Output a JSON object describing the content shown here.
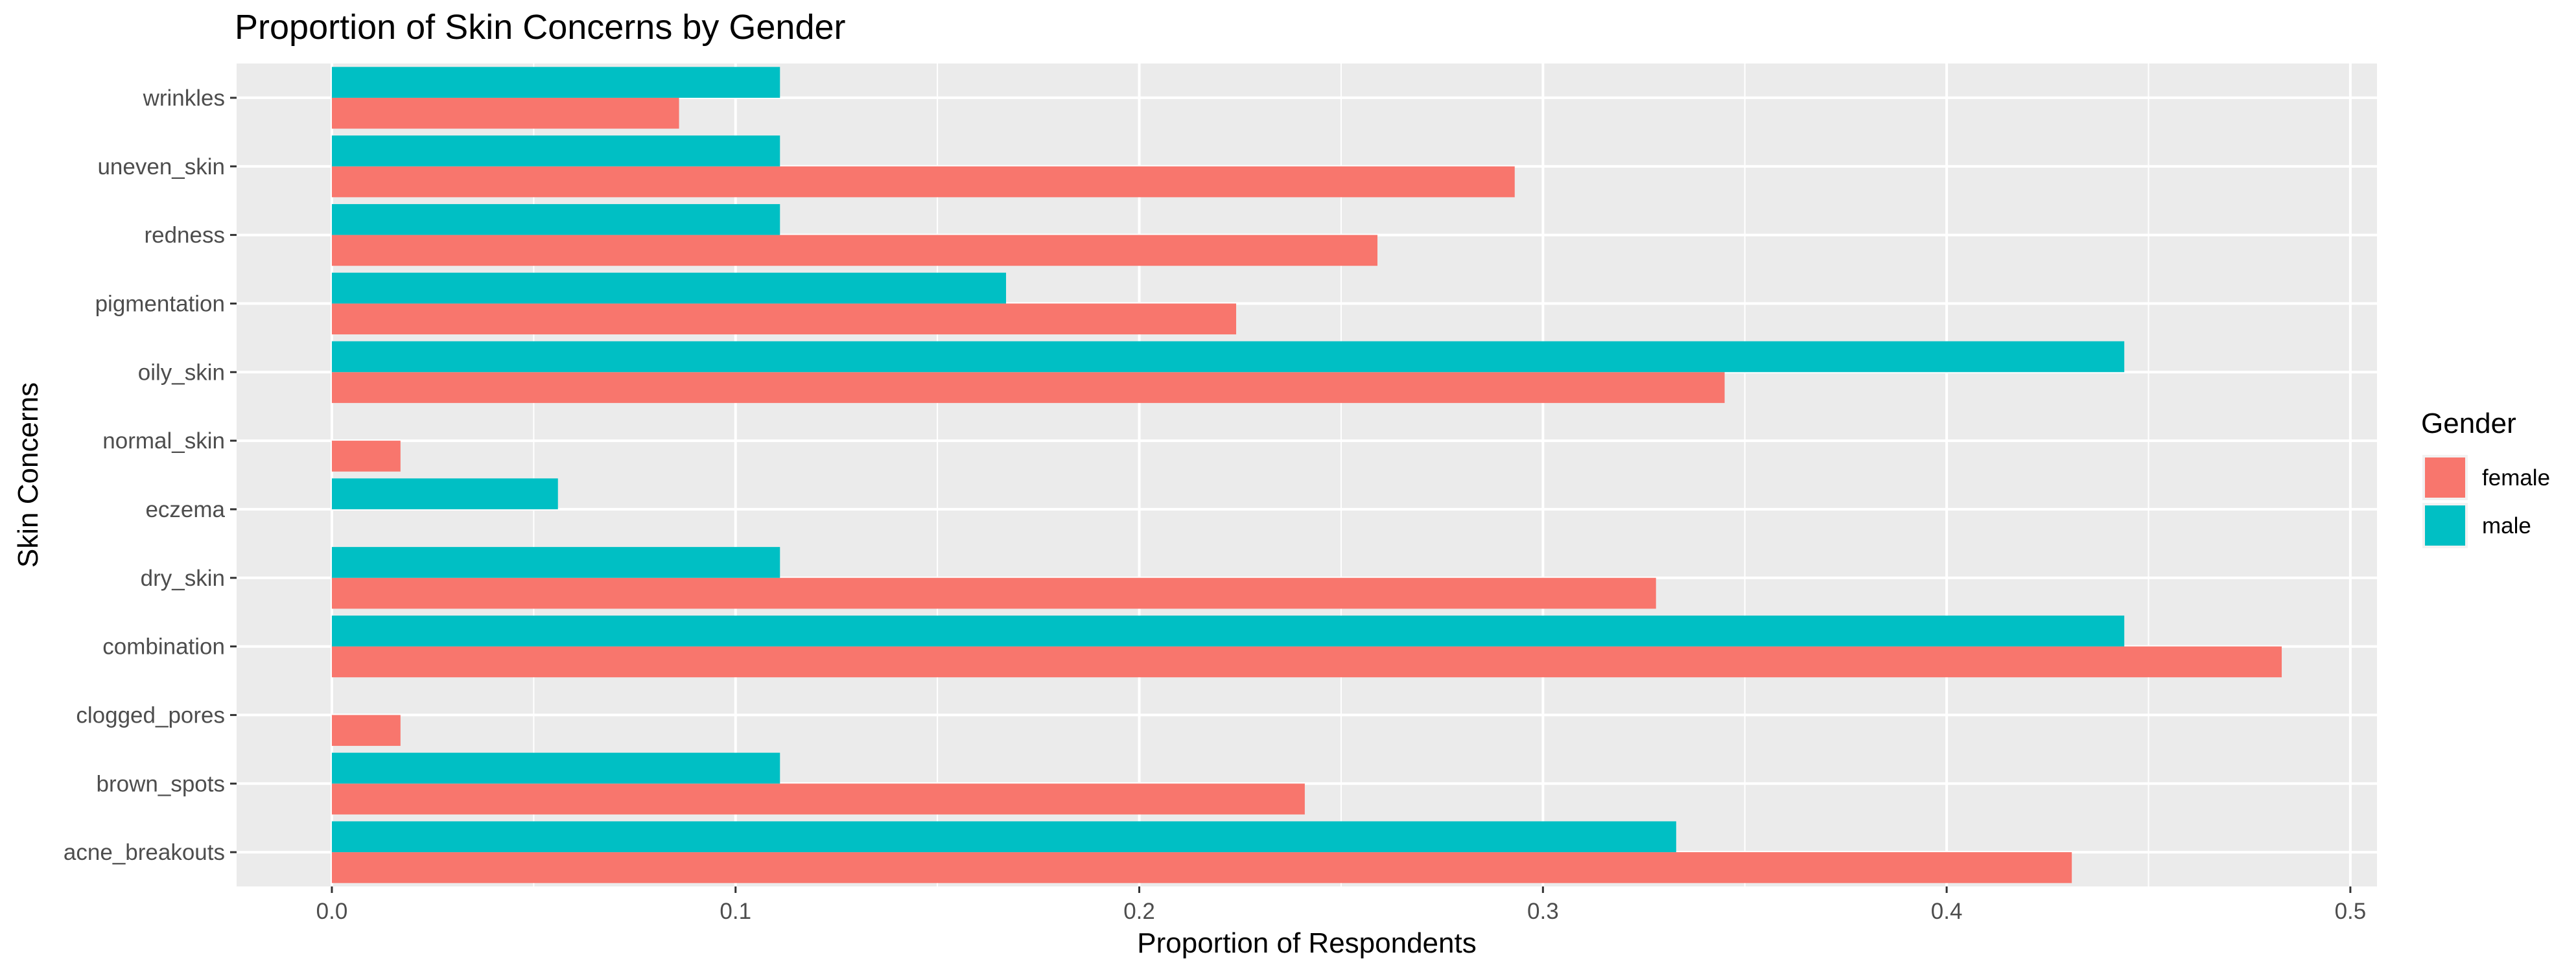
{
  "chart_data": {
    "type": "bar",
    "orientation": "horizontal",
    "title": "Proportion of Skin Concerns by Gender",
    "xlabel": "Proportion of Respondents",
    "ylabel": "Skin Concerns",
    "xlim": [
      -0.0236,
      0.5066
    ],
    "x_ticks": [
      0.0,
      0.1,
      0.2,
      0.3,
      0.4,
      0.5
    ],
    "x_tick_labels": [
      "0.0",
      "0.1",
      "0.2",
      "0.3",
      "0.4",
      "0.5"
    ],
    "categories": [
      "acne_breakouts",
      "brown_spots",
      "clogged_pores",
      "combination",
      "dry_skin",
      "eczema",
      "normal_skin",
      "oily_skin",
      "pigmentation",
      "redness",
      "uneven_skin",
      "wrinkles"
    ],
    "series": [
      {
        "name": "female",
        "color": "#F8766D",
        "values": [
          0.431,
          0.241,
          0.017,
          0.483,
          0.328,
          null,
          0.017,
          0.345,
          0.224,
          0.259,
          0.293,
          0.086
        ]
      },
      {
        "name": "male",
        "color": "#00BFC4",
        "values": [
          0.333,
          0.111,
          null,
          0.444,
          0.111,
          0.056,
          null,
          0.444,
          0.167,
          0.111,
          0.111,
          0.111
        ]
      }
    ],
    "grid": true,
    "panel_background": "#EBEBEB",
    "legend": {
      "title": "Gender",
      "position": "right"
    }
  }
}
